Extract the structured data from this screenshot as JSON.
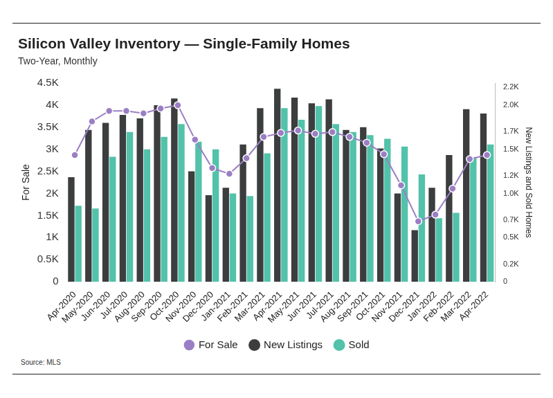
{
  "chart_data": {
    "type": "bar",
    "title": "Silicon Valley Inventory — Single-Family Homes",
    "subtitle": "Two-Year, Monthly",
    "ylabel": "For Sale",
    "y2label": "New Listings and Sold Homes",
    "source": "Source: MLS",
    "categories": [
      "Apr-2020",
      "May-2020",
      "Jun-2020",
      "Jul-2020",
      "Aug-2020",
      "Sep-2020",
      "Oct-2020",
      "Nov-2020",
      "Dec-2020",
      "Jan-2021",
      "Feb-2021",
      "Mar-2021",
      "Apr-2021",
      "May-2021",
      "Jun-2021",
      "Jul-2021",
      "Aug-2021",
      "Sep-2021",
      "Oct-2021",
      "Nov-2021",
      "Dec-2021",
      "Jan-2022",
      "Feb-2022",
      "Mar-2022",
      "Apr-2022"
    ],
    "series": [
      {
        "name": "For Sale",
        "type": "line",
        "marker": "circle",
        "color": "#9b7fc4",
        "values": [
          2870,
          3630,
          3870,
          3870,
          3815,
          3925,
          4000,
          3220,
          2575,
          2445,
          2800,
          3280,
          3370,
          3425,
          3350,
          3390,
          3280,
          3150,
          2890,
          2185,
          1370,
          1520,
          2110,
          2780,
          2870
        ]
      },
      {
        "name": "New Listings",
        "type": "bar",
        "axis": "y2",
        "color": "#3b3d3e",
        "values": [
          1185,
          1720,
          1800,
          1890,
          1850,
          2000,
          2075,
          1250,
          980,
          1065,
          1555,
          1965,
          2185,
          2085,
          2020,
          2065,
          1720,
          1750,
          1510,
          1000,
          585,
          1065,
          1435,
          1955,
          1905
        ]
      },
      {
        "name": "Sold",
        "type": "bar",
        "axis": "y2",
        "color": "#52c2aa",
        "values": [
          860,
          830,
          1415,
          1695,
          1500,
          1640,
          1785,
          1585,
          1500,
          1000,
          970,
          1455,
          1965,
          1835,
          1990,
          1785,
          1695,
          1660,
          1620,
          1530,
          1215,
          720,
          780,
          1405,
          1555
        ]
      }
    ],
    "ylim": [
      0,
      4500
    ],
    "yticks": [
      0,
      {
        "value": 500,
        "label": "0.5K"
      },
      {
        "value": 1000,
        "label": "1K"
      },
      {
        "value": 1500,
        "label": "1.5K"
      },
      {
        "value": 2000,
        "label": "2K"
      },
      {
        "value": 2500,
        "label": "2.5K"
      },
      {
        "value": 3000,
        "label": "3K"
      },
      {
        "value": 3500,
        "label": "3.5K"
      },
      {
        "value": 4000,
        "label": "4K"
      },
      {
        "value": 4500,
        "label": "4.5K"
      }
    ],
    "y2lim": [
      0,
      2250
    ],
    "y2ticks": [
      0,
      {
        "value": 200,
        "label": "0.2K"
      },
      {
        "value": 500,
        "label": "0.5K"
      },
      {
        "value": 700,
        "label": "0.7K"
      },
      {
        "value": 1000,
        "label": "1.0K"
      },
      {
        "value": 1200,
        "label": "1.2K"
      },
      {
        "value": 1500,
        "label": "1.5K"
      },
      {
        "value": 1700,
        "label": "1.7K"
      },
      {
        "value": 2000,
        "label": "2.0K"
      },
      {
        "value": 2200,
        "label": "2.2K"
      }
    ],
    "grid": false,
    "legend": "bottom"
  }
}
